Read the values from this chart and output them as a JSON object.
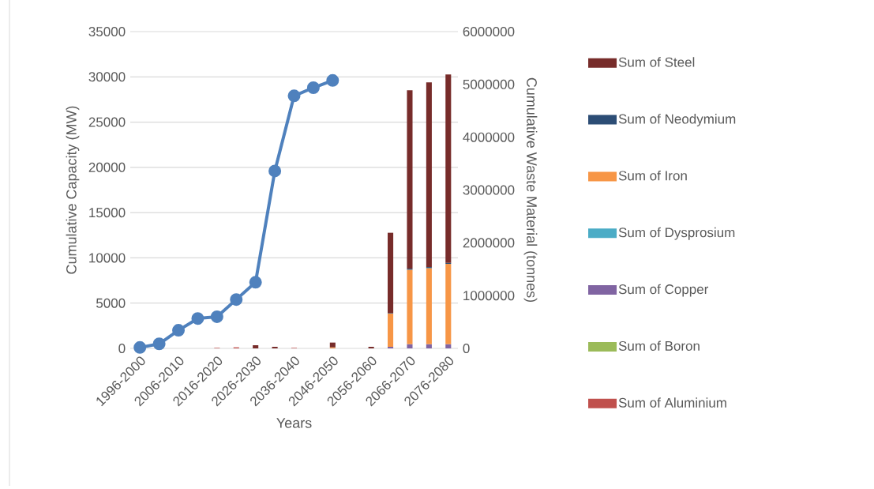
{
  "chart_data": {
    "type": "bar",
    "stacked": true,
    "xlabel": "Years",
    "ylabel": "Cumulative Capacity (MW)",
    "y2label": "Cumulative Waste Material (tonnes)",
    "categories": [
      "1996-2000",
      null,
      "2006-2010",
      null,
      "2016-2020",
      null,
      "2026-2030",
      null,
      "2036-2040",
      null,
      "2046-2050",
      null,
      "2056-2060",
      null,
      "2066-2070",
      null,
      "2076-2080"
    ],
    "ylim": [
      0,
      35000
    ],
    "yticks": [
      0,
      5000,
      10000,
      15000,
      20000,
      25000,
      30000,
      35000
    ],
    "y2lim": [
      0,
      6000000
    ],
    "y2ticks": [
      0,
      1000000,
      2000000,
      3000000,
      4000000,
      5000000,
      6000000
    ],
    "grid": "y",
    "legend": "right",
    "marker": "circle",
    "series": [
      {
        "type": "line",
        "color": "#4f81bd",
        "values": [
          100,
          500,
          2000,
          3300,
          3500,
          5400,
          7300,
          19600,
          27900,
          28800,
          29600,
          null,
          null,
          null,
          null,
          null,
          null
        ]
      },
      {
        "name": "Sum of Aluminium",
        "axis": "y2",
        "color": "#c0504d",
        "values": [
          null,
          null,
          null,
          null,
          10000,
          20000,
          null,
          null,
          10000,
          null,
          null,
          null,
          null,
          null,
          null,
          null,
          null
        ]
      },
      {
        "name": "Sum of Boron",
        "axis": "y2",
        "color": "#9bbb59",
        "values": [
          null,
          null,
          null,
          null,
          null,
          null,
          null,
          null,
          null,
          null,
          null,
          null,
          null,
          null,
          null,
          null,
          null
        ]
      },
      {
        "name": "Sum of Copper",
        "axis": "y2",
        "color": "#8064a2",
        "values": [
          null,
          null,
          null,
          null,
          null,
          null,
          null,
          null,
          null,
          null,
          null,
          null,
          null,
          30000,
          80000,
          80000,
          80000
        ]
      },
      {
        "name": "Sum of Dysprosium",
        "axis": "y2",
        "color": "#4bacc6",
        "values": [
          null,
          null,
          null,
          null,
          null,
          null,
          null,
          null,
          null,
          null,
          null,
          null,
          null,
          null,
          null,
          null,
          null
        ]
      },
      {
        "name": "Sum of Iron",
        "axis": "y2",
        "color": "#f79646",
        "values": [
          null,
          null,
          null,
          null,
          null,
          null,
          null,
          null,
          null,
          null,
          20000,
          null,
          null,
          630000,
          1410000,
          1440000,
          1520000
        ]
      },
      {
        "name": "Sum of Neodymium",
        "axis": "y2",
        "color": "#2c4d75",
        "values": [
          null,
          null,
          null,
          null,
          null,
          null,
          null,
          null,
          null,
          null,
          null,
          null,
          null,
          10000,
          20000,
          20000,
          20000
        ]
      },
      {
        "name": "Sum of Steel",
        "axis": "y2",
        "color": "#772c2a",
        "values": [
          null,
          null,
          null,
          null,
          null,
          null,
          60000,
          30000,
          null,
          null,
          90000,
          null,
          30000,
          1520000,
          3380000,
          3500000,
          3570000
        ]
      }
    ]
  }
}
